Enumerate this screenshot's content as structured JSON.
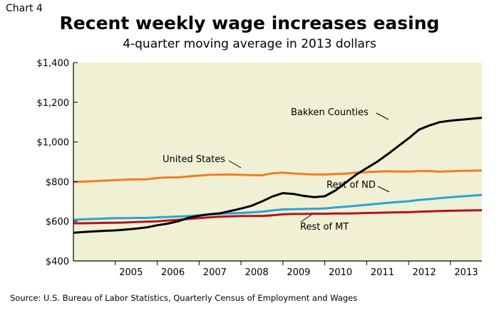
{
  "header": {
    "chart_label": "Chart 4",
    "title": "Recent weekly wage increases easing",
    "subtitle": "4-quarter moving average in 2013 dollars"
  },
  "footer": {
    "source": "Source: U.S. Bureau of Labor Statistics, Quarterly Census of Employment and Wages"
  },
  "colors": {
    "plot_background": "#f0f0d4",
    "axis": "#000000",
    "bakken": "#000000",
    "united_states": "#f47c20",
    "rest_of_nd": "#2aa3d8",
    "rest_of_mt": "#b5121b"
  },
  "chart_data": {
    "type": "line",
    "title": "Recent weekly wage increases easing",
    "subtitle": "4-quarter moving average in 2013 dollars",
    "xlabel": "",
    "ylabel": "",
    "ylim": [
      400,
      1400
    ],
    "xlim": [
      2004.0,
      2013.75
    ],
    "grid": false,
    "legend": "inline labels",
    "y_ticks": [
      400,
      600,
      800,
      1000,
      1200,
      1400
    ],
    "y_tick_labels": [
      "$400",
      "$600",
      "$800",
      "$1,000",
      "$1,200",
      "$1,400"
    ],
    "x_ticks": [
      2005,
      2006,
      2007,
      2008,
      2009,
      2010,
      2011,
      2012,
      2013
    ],
    "x_tick_labels": [
      "2005",
      "2006",
      "2007",
      "2008",
      "2009",
      "2010",
      "2011",
      "2012",
      "2013"
    ],
    "x": [
      2004.0,
      2004.25,
      2004.5,
      2004.75,
      2005.0,
      2005.25,
      2005.5,
      2005.75,
      2006.0,
      2006.25,
      2006.5,
      2006.75,
      2007.0,
      2007.25,
      2007.5,
      2007.75,
      2008.0,
      2008.25,
      2008.5,
      2008.75,
      2009.0,
      2009.25,
      2009.5,
      2009.75,
      2010.0,
      2010.25,
      2010.5,
      2010.75,
      2011.0,
      2011.25,
      2011.5,
      2011.75,
      2012.0,
      2012.25,
      2012.5,
      2012.75,
      2013.0,
      2013.25,
      2013.5,
      2013.75
    ],
    "series": [
      {
        "name": "Bakken Counties",
        "color": "#000000",
        "values": [
          542,
          546,
          549,
          552,
          554,
          558,
          563,
          569,
          580,
          588,
          600,
          618,
          628,
          635,
          640,
          652,
          664,
          678,
          700,
          725,
          742,
          738,
          728,
          722,
          726,
          755,
          795,
          835,
          868,
          900,
          938,
          978,
          1018,
          1062,
          1083,
          1100,
          1107,
          1112,
          1117,
          1122
        ]
      },
      {
        "name": "United States",
        "color": "#f47c20",
        "values": [
          798,
          800,
          802,
          805,
          807,
          810,
          811,
          812,
          818,
          821,
          821,
          826,
          830,
          834,
          835,
          836,
          834,
          833,
          832,
          842,
          845,
          841,
          838,
          836,
          836,
          838,
          840,
          845,
          848,
          850,
          852,
          851,
          851,
          853,
          853,
          850,
          852,
          854,
          855,
          856
        ]
      },
      {
        "name": "Rest of ND",
        "color": "#2aa3d8",
        "values": [
          607,
          610,
          612,
          614,
          616,
          616,
          617,
          617,
          620,
          622,
          624,
          626,
          630,
          635,
          638,
          640,
          642,
          645,
          648,
          655,
          660,
          661,
          662,
          663,
          665,
          670,
          674,
          678,
          683,
          688,
          693,
          697,
          701,
          707,
          712,
          717,
          721,
          725,
          729,
          733
        ]
      },
      {
        "name": "Rest of MT",
        "color": "#b5121b",
        "values": [
          590,
          590,
          591,
          592,
          593,
          594,
          596,
          598,
          600,
          604,
          607,
          612,
          616,
          620,
          623,
          625,
          626,
          627,
          627,
          630,
          635,
          637,
          637,
          638,
          638,
          639,
          639,
          640,
          642,
          643,
          644,
          645,
          646,
          648,
          650,
          652,
          653,
          654,
          655,
          656
        ]
      }
    ],
    "annotations": [
      {
        "text": "Bakken Counties",
        "series": "Bakken Counties"
      },
      {
        "text": "United States",
        "series": "United States"
      },
      {
        "text": "Rest of ND",
        "series": "Rest of ND"
      },
      {
        "text": "Rest of MT",
        "series": "Rest of MT"
      }
    ]
  }
}
